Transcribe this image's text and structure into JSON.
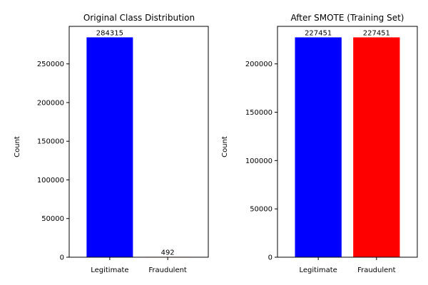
{
  "chart_data": [
    {
      "type": "bar",
      "title": "Original Class Distribution",
      "xlabel": "",
      "ylabel": "Count",
      "categories": [
        "Legitimate",
        "Fraudulent"
      ],
      "values": [
        284315,
        492
      ],
      "data_labels": [
        "284315",
        "492"
      ],
      "colors": [
        "#0000ff",
        "#ff0000"
      ],
      "ylim": [
        0,
        298530
      ],
      "yticks": [
        0,
        50000,
        100000,
        150000,
        200000,
        250000
      ],
      "grid": false
    },
    {
      "type": "bar",
      "title": "After SMOTE (Training Set)",
      "xlabel": "",
      "ylabel": "Count",
      "categories": [
        "Legitimate",
        "Fraudulent"
      ],
      "values": [
        227451,
        227451
      ],
      "data_labels": [
        "227451",
        "227451"
      ],
      "colors": [
        "#0000ff",
        "#ff0000"
      ],
      "ylim": [
        0,
        238824
      ],
      "yticks": [
        0,
        50000,
        100000,
        150000,
        200000
      ],
      "grid": false
    }
  ]
}
